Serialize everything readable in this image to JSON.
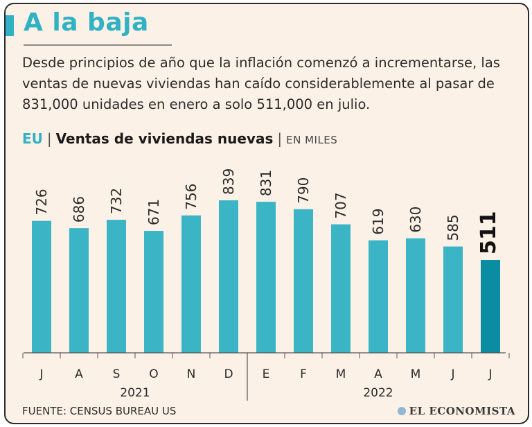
{
  "header": {
    "title": "A la baja",
    "intro": "Desde principios de año que la inflación comenzó a incrementarse, las ventas de nuevas viviendas han caído considerablemente al pasar de 831,000 unidades en enero a solo 511,000 en julio."
  },
  "subtitle": {
    "country": "EU",
    "separator": "|",
    "name": "Ventas de viviendas nuevas",
    "units": "EN MILES"
  },
  "colors": {
    "bar": "#3bb4c5",
    "highlight": "#0a8da3",
    "text": "#2b2b2b"
  },
  "chart_data": {
    "type": "bar",
    "title": "Ventas de viviendas nuevas",
    "ylabel": "EN MILES",
    "xlabel": "",
    "categories": [
      "J",
      "A",
      "S",
      "O",
      "N",
      "D",
      "E",
      "F",
      "M",
      "A",
      "M",
      "J",
      "J"
    ],
    "values": [
      726,
      686,
      732,
      671,
      756,
      839,
      831,
      790,
      707,
      619,
      630,
      585,
      511
    ],
    "highlight_index": 12,
    "year_groups": [
      {
        "label": "2021",
        "from": 0,
        "to": 5
      },
      {
        "label": "2022",
        "from": 6,
        "to": 12
      }
    ],
    "ylim": [
      0,
      900
    ],
    "grid": false
  },
  "footer": {
    "source": "FUENTE: CENSUS BUREAU US",
    "logo_text": "EL ECONOMISTA"
  }
}
